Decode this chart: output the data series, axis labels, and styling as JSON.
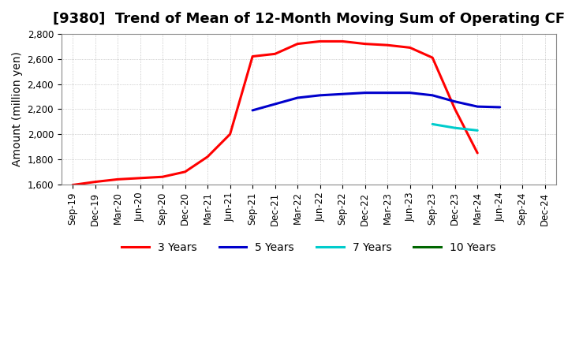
{
  "title": "[9380]  Trend of Mean of 12-Month Moving Sum of Operating CF",
  "ylabel": "Amount (million yen)",
  "xlim_start": 0,
  "xlim_end": 21,
  "ylim": [
    1600,
    2800
  ],
  "yticks": [
    1600,
    1800,
    2000,
    2200,
    2400,
    2600,
    2800
  ],
  "xtick_labels": [
    "Sep-19",
    "Dec-19",
    "Mar-20",
    "Jun-20",
    "Sep-20",
    "Dec-20",
    "Mar-21",
    "Jun-21",
    "Sep-21",
    "Dec-21",
    "Mar-22",
    "Jun-22",
    "Sep-22",
    "Dec-22",
    "Mar-23",
    "Jun-23",
    "Sep-23",
    "Dec-23",
    "Mar-24",
    "Jun-24",
    "Sep-24",
    "Dec-24"
  ],
  "series_3y": {
    "x": [
      0,
      1,
      2,
      3,
      4,
      5,
      6,
      7,
      8,
      9,
      10,
      11,
      12,
      13,
      14,
      15,
      16,
      17,
      18
    ],
    "y": [
      1595,
      1620,
      1640,
      1650,
      1660,
      1700,
      1820,
      2000,
      2620,
      2640,
      2720,
      2740,
      2740,
      2720,
      2710,
      2690,
      2610,
      2200,
      1850
    ],
    "color": "#FF0000",
    "linewidth": 2.2,
    "label": "3 Years"
  },
  "series_5y": {
    "x": [
      8,
      9,
      10,
      11,
      12,
      13,
      14,
      15,
      16,
      17,
      18,
      19
    ],
    "y": [
      2190,
      2240,
      2290,
      2310,
      2320,
      2330,
      2330,
      2330,
      2310,
      2260,
      2220,
      2215
    ],
    "color": "#0000CC",
    "linewidth": 2.2,
    "label": "5 Years"
  },
  "series_7y": {
    "x": [
      16,
      17,
      18
    ],
    "y": [
      2080,
      2050,
      2030
    ],
    "color": "#00CCCC",
    "linewidth": 2.2,
    "label": "7 Years"
  },
  "series_10y": {
    "x": [],
    "y": [],
    "color": "#006600",
    "linewidth": 2.2,
    "label": "10 Years"
  },
  "bg_color": "#FFFFFF",
  "plot_bg_color": "#FFFFFF",
  "grid_color": "#AAAAAA",
  "title_fontsize": 13,
  "label_fontsize": 10,
  "tick_fontsize": 8.5
}
